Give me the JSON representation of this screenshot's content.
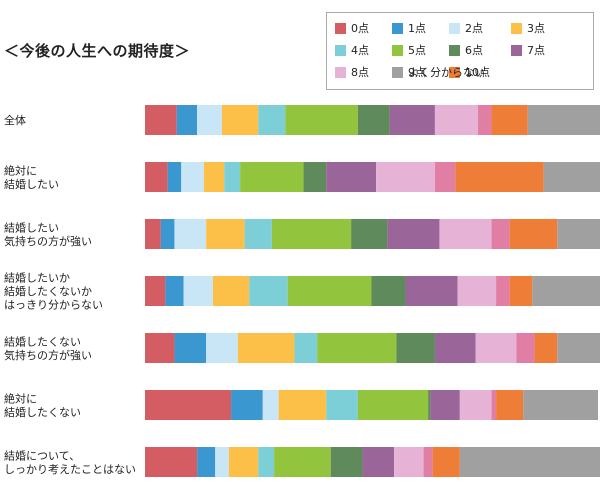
{
  "chart_data": {
    "type": "bar",
    "orientation": "horizontal",
    "stacked": true,
    "title": "＜今後の人生への期待度＞",
    "legend_position": "top-right",
    "xlim": [
      0,
      100
    ],
    "categories": [
      [
        "全体"
      ],
      [
        "絶対に",
        "結婚したい"
      ],
      [
        "結婚したい",
        "気持ちの方が強い"
      ],
      [
        "結婚したいか",
        "結婚したくないか",
        "はっきり分からない"
      ],
      [
        "結婚したくない",
        "気持ちの方が強い"
      ],
      [
        "絶対に",
        "結婚したくない"
      ],
      [
        "結婚について、",
        "しっかり考えたことはない"
      ]
    ],
    "series": [
      {
        "name": "0点",
        "color": "#d45d63",
        "values": [
          7.0,
          5.0,
          3.5,
          4.5,
          6.5,
          19.0,
          11.5
        ]
      },
      {
        "name": "1点",
        "color": "#3b97d0",
        "values": [
          4.5,
          3.0,
          3.0,
          4.0,
          7.0,
          7.0,
          4.0
        ]
      },
      {
        "name": "2点",
        "color": "#c9e6f7",
        "values": [
          5.5,
          5.0,
          7.0,
          6.5,
          7.0,
          3.5,
          3.0
        ]
      },
      {
        "name": "3点",
        "color": "#fcbf48",
        "values": [
          8.0,
          4.5,
          8.5,
          8.0,
          12.5,
          10.5,
          6.5
        ]
      },
      {
        "name": "4点",
        "color": "#7ccfd6",
        "values": [
          6.0,
          3.5,
          6.0,
          8.5,
          5.0,
          7.0,
          3.5
        ]
      },
      {
        "name": "5点",
        "color": "#93c43d",
        "values": [
          16.0,
          14.0,
          17.5,
          18.5,
          17.5,
          15.5,
          12.5
        ]
      },
      {
        "name": "6点",
        "color": "#5e8a5c",
        "values": [
          7.0,
          5.0,
          8.0,
          7.5,
          8.5,
          0.5,
          7.0
        ]
      },
      {
        "name": "7点",
        "color": "#9a6699",
        "values": [
          10.0,
          11.0,
          11.5,
          11.5,
          9.0,
          6.5,
          7.0
        ]
      },
      {
        "name": "8点",
        "color": "#e6b3d6",
        "values": [
          9.5,
          13.0,
          11.5,
          8.5,
          9.0,
          7.0,
          6.5
        ]
      },
      {
        "name": "9点",
        "color": "#e07ea4",
        "values": [
          3.0,
          4.5,
          4.0,
          3.0,
          4.0,
          1.0,
          2.0
        ]
      },
      {
        "name": "10点",
        "color": "#ee7d37",
        "values": [
          8.0,
          19.5,
          10.5,
          5.0,
          5.0,
          6.0,
          6.0
        ]
      },
      {
        "name": "よく分からない",
        "color": "#a0a0a0",
        "values": [
          16.5,
          13.0,
          10.0,
          15.5,
          10.0,
          16.5,
          31.5
        ]
      }
    ]
  }
}
